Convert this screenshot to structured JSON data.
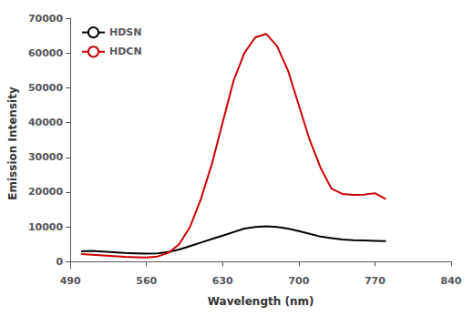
{
  "chart_data": {
    "type": "line",
    "xlabel": "Wavelength (nm)",
    "ylabel": "Emission Intensity",
    "xlim": [
      490,
      840
    ],
    "ylim": [
      -2000,
      70000
    ],
    "xticks": [
      490,
      560,
      630,
      700,
      770,
      840
    ],
    "yticks": [
      0,
      10000,
      20000,
      30000,
      40000,
      50000,
      60000,
      70000
    ],
    "x": [
      500,
      510,
      520,
      530,
      540,
      550,
      560,
      570,
      580,
      590,
      600,
      610,
      620,
      630,
      640,
      650,
      660,
      670,
      680,
      690,
      700,
      710,
      720,
      730,
      740,
      750,
      760,
      770,
      780
    ],
    "series": [
      {
        "name": "HDSN",
        "color": "#000000",
        "values": [
          3000,
          3100,
          2900,
          2700,
          2500,
          2400,
          2300,
          2400,
          2800,
          3500,
          4500,
          5500,
          6500,
          7500,
          8500,
          9500,
          10000,
          10200,
          10000,
          9500,
          8800,
          8000,
          7200,
          6800,
          6400,
          6200,
          6100,
          6000,
          5900
        ]
      },
      {
        "name": "HDCN",
        "color": "#cc0000",
        "values": [
          2200,
          2000,
          1800,
          1600,
          1400,
          1300,
          1200,
          1500,
          2500,
          5000,
          10000,
          18000,
          28000,
          40000,
          52000,
          60000,
          64500,
          65500,
          62000,
          55000,
          45000,
          35000,
          27000,
          21000,
          19500,
          19200,
          19300,
          19700,
          18000
        ]
      }
    ],
    "legend": "upper left",
    "grid": false
  }
}
